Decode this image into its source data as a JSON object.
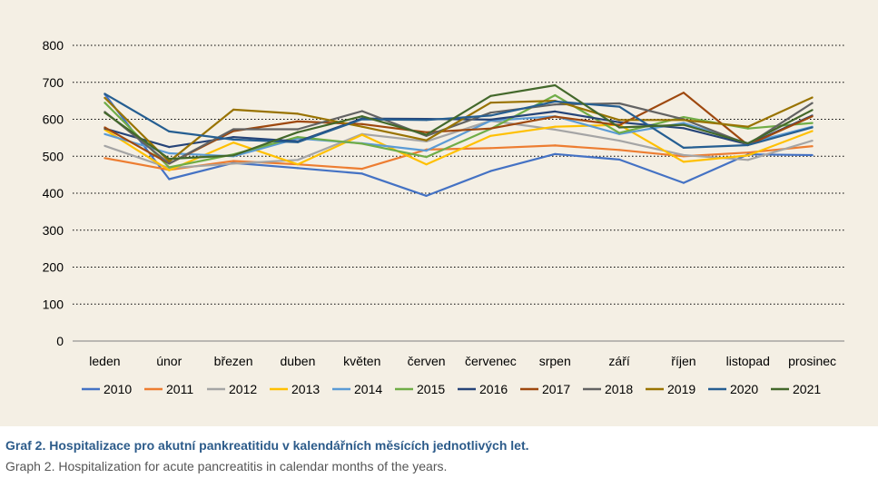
{
  "chart_data": {
    "type": "line",
    "categories": [
      "leden",
      "únor",
      "březen",
      "duben",
      "květen",
      "červen",
      "červenec",
      "srpen",
      "září",
      "říjen",
      "listopad",
      "prosinec"
    ],
    "ylim": [
      0,
      800
    ],
    "yticks": [
      0,
      100,
      200,
      300,
      400,
      500,
      600,
      700,
      800
    ],
    "grid": true,
    "legend_position": "bottom",
    "series": [
      {
        "name": "2010",
        "color": "#4472c4",
        "values": [
          668,
          438,
          482,
          468,
          453,
          393,
          460,
          506,
          491,
          428,
          505,
          503
        ]
      },
      {
        "name": "2011",
        "color": "#ed7d31",
        "values": [
          495,
          463,
          487,
          478,
          466,
          518,
          522,
          529,
          517,
          500,
          510,
          527
        ]
      },
      {
        "name": "2012",
        "color": "#a5a5a5",
        "values": [
          528,
          468,
          480,
          490,
          560,
          540,
          596,
          572,
          542,
          503,
          490,
          542
        ]
      },
      {
        "name": "2013",
        "color": "#ffc000",
        "values": [
          572,
          462,
          537,
          478,
          558,
          478,
          555,
          580,
          585,
          485,
          502,
          568
        ]
      },
      {
        "name": "2014",
        "color": "#5b9bd5",
        "values": [
          560,
          508,
          500,
          548,
          535,
          515,
          596,
          608,
          560,
          590,
          535,
          580
        ]
      },
      {
        "name": "2015",
        "color": "#70ad47",
        "values": [
          645,
          470,
          505,
          552,
          534,
          498,
          574,
          665,
          563,
          606,
          575,
          590
        ]
      },
      {
        "name": "2016",
        "color": "#264478",
        "values": [
          575,
          525,
          552,
          540,
          602,
          601,
          599,
          621,
          592,
          576,
          532,
          610
        ]
      },
      {
        "name": "2017",
        "color": "#9e480e",
        "values": [
          578,
          480,
          568,
          594,
          587,
          565,
          575,
          607,
          584,
          672,
          530,
          608
        ]
      },
      {
        "name": "2018",
        "color": "#636363",
        "values": [
          620,
          480,
          573,
          573,
          622,
          555,
          618,
          640,
          643,
          600,
          532,
          644
        ]
      },
      {
        "name": "2019",
        "color": "#997300",
        "values": [
          658,
          486,
          626,
          615,
          580,
          543,
          645,
          650,
          598,
          598,
          580,
          659
        ]
      },
      {
        "name": "2020",
        "color": "#255e91",
        "values": [
          669,
          567,
          545,
          538,
          600,
          598,
          610,
          648,
          634,
          523,
          530,
          578
        ]
      },
      {
        "name": "2021",
        "color": "#43682b",
        "values": [
          618,
          493,
          502,
          565,
          608,
          558,
          663,
          692,
          578,
          585,
          535,
          625
        ]
      }
    ]
  },
  "caption": {
    "title": "Graf 2. Hospitalizace pro akutní pankreatitidu v kalendářních měsících jednotlivých let.",
    "subtitle": "Graph 2. Hospitalization for acute pancreatitis in calendar months of the years."
  }
}
